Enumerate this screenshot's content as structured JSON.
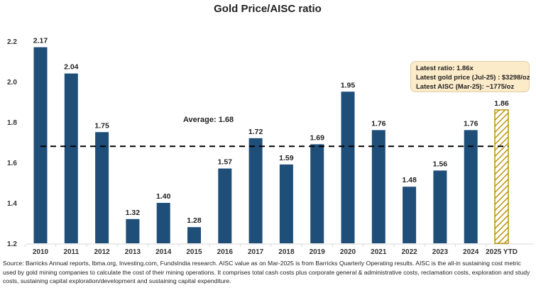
{
  "chart_data": {
    "type": "bar",
    "title": "Gold Price/AISC ratio",
    "xlabel": "",
    "ylabel": "",
    "ylim": [
      1.2,
      2.2
    ],
    "yticks": [
      "1.2",
      "1.4",
      "1.6",
      "1.8",
      "2.0",
      "2.2"
    ],
    "ytick_values": [
      1.2,
      1.4,
      1.6,
      1.8,
      2.0,
      2.2
    ],
    "grid": false,
    "categories": [
      "2010",
      "2011",
      "2012",
      "2013",
      "2014",
      "2015",
      "2016",
      "2017",
      "2018",
      "2019",
      "2020",
      "2021",
      "2022",
      "2023",
      "2024",
      "2025 YTD"
    ],
    "values": [
      2.17,
      2.04,
      1.75,
      1.32,
      1.4,
      1.28,
      1.57,
      1.72,
      1.59,
      1.69,
      1.95,
      1.76,
      1.48,
      1.56,
      1.76,
      1.86
    ],
    "value_labels": [
      "2.17",
      "2.04",
      "1.75",
      "1.32",
      "1.40",
      "1.28",
      "1.57",
      "1.72",
      "1.59",
      "1.69",
      "1.95",
      "1.76",
      "1.48",
      "1.56",
      "1.76",
      "1.86"
    ],
    "highlight_index": 15,
    "colors": {
      "bar": "#1f4e79",
      "highlight_stroke": "#b8960c",
      "highlight_fill": "#ffffff",
      "average_line": "#000000"
    },
    "average": {
      "value": 1.68,
      "label": "Average: 1.68"
    },
    "annotation": {
      "lines": [
        "Latest ratio: 1.86x",
        "Latest gold price (Jul-25) : $3298/oz",
        "Latest AISC (Mar-25): ~1775/oz"
      ],
      "background": "#fcebc9"
    }
  },
  "source_text": "Source: Barricks Annual reports, lbma.org, Investing.com, FundsIndia research. AISC value as on Mar-2025 is from Barricks Quarterly Operating results. AISC is the all-in sustaining cost metric used by gold mining companies to calculate the cost of their mining operations. It comprises total cash costs plus corporate general & administrative costs, reclamation costs, exploration and study costs, sustaining capital exploration/development and sustaining capital expenditure."
}
